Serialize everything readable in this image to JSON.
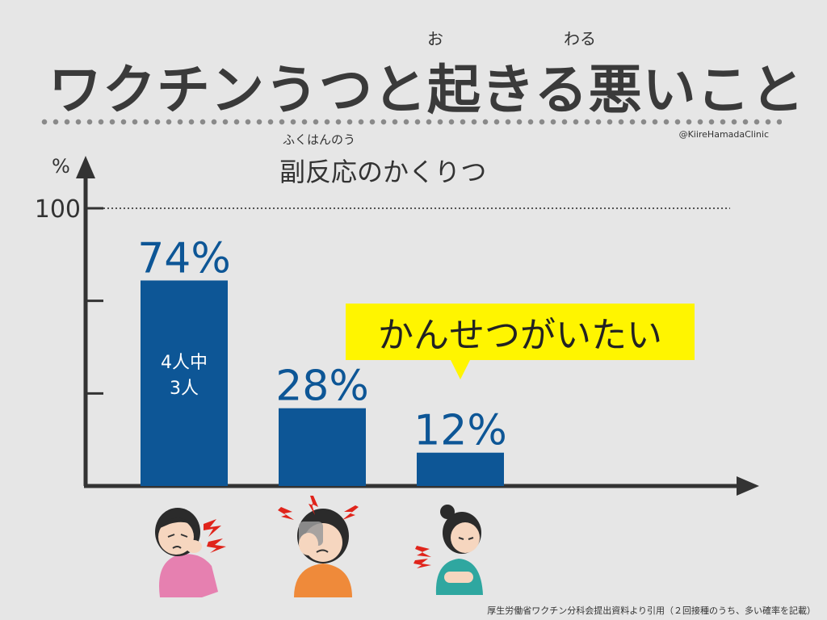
{
  "title": {
    "text": "ワクチンうつと起きる悪いこと",
    "ruby_oki": "お",
    "ruby_waru": "わる"
  },
  "credit": "@KiireHamadaClinic",
  "subtitle": {
    "text": "副反応のかくりつ",
    "ruby": "ふくはんのう"
  },
  "callout": "かんせつがいたい",
  "source": "厚生労働省ワクチン分科会提出資料より引用（２回接種のうち、多い確率を記載）",
  "colors": {
    "bar": "#0d5696",
    "callout": "#fff500",
    "axis": "#333333"
  },
  "icons": [
    "shoulder-pain-woman-icon",
    "headache-woman-icon",
    "joint-pain-woman-icon"
  ],
  "chart_data": {
    "type": "bar",
    "categories": [
      "",
      "",
      ""
    ],
    "values": [
      74,
      28,
      12
    ],
    "value_labels": [
      "74%",
      "28%",
      "12%"
    ],
    "inner_label": [
      "4人中",
      "3人"
    ],
    "ylabel": "%",
    "ylim": [
      0,
      100
    ],
    "y_tick_labels": [
      "100"
    ],
    "reference_line": 100
  }
}
